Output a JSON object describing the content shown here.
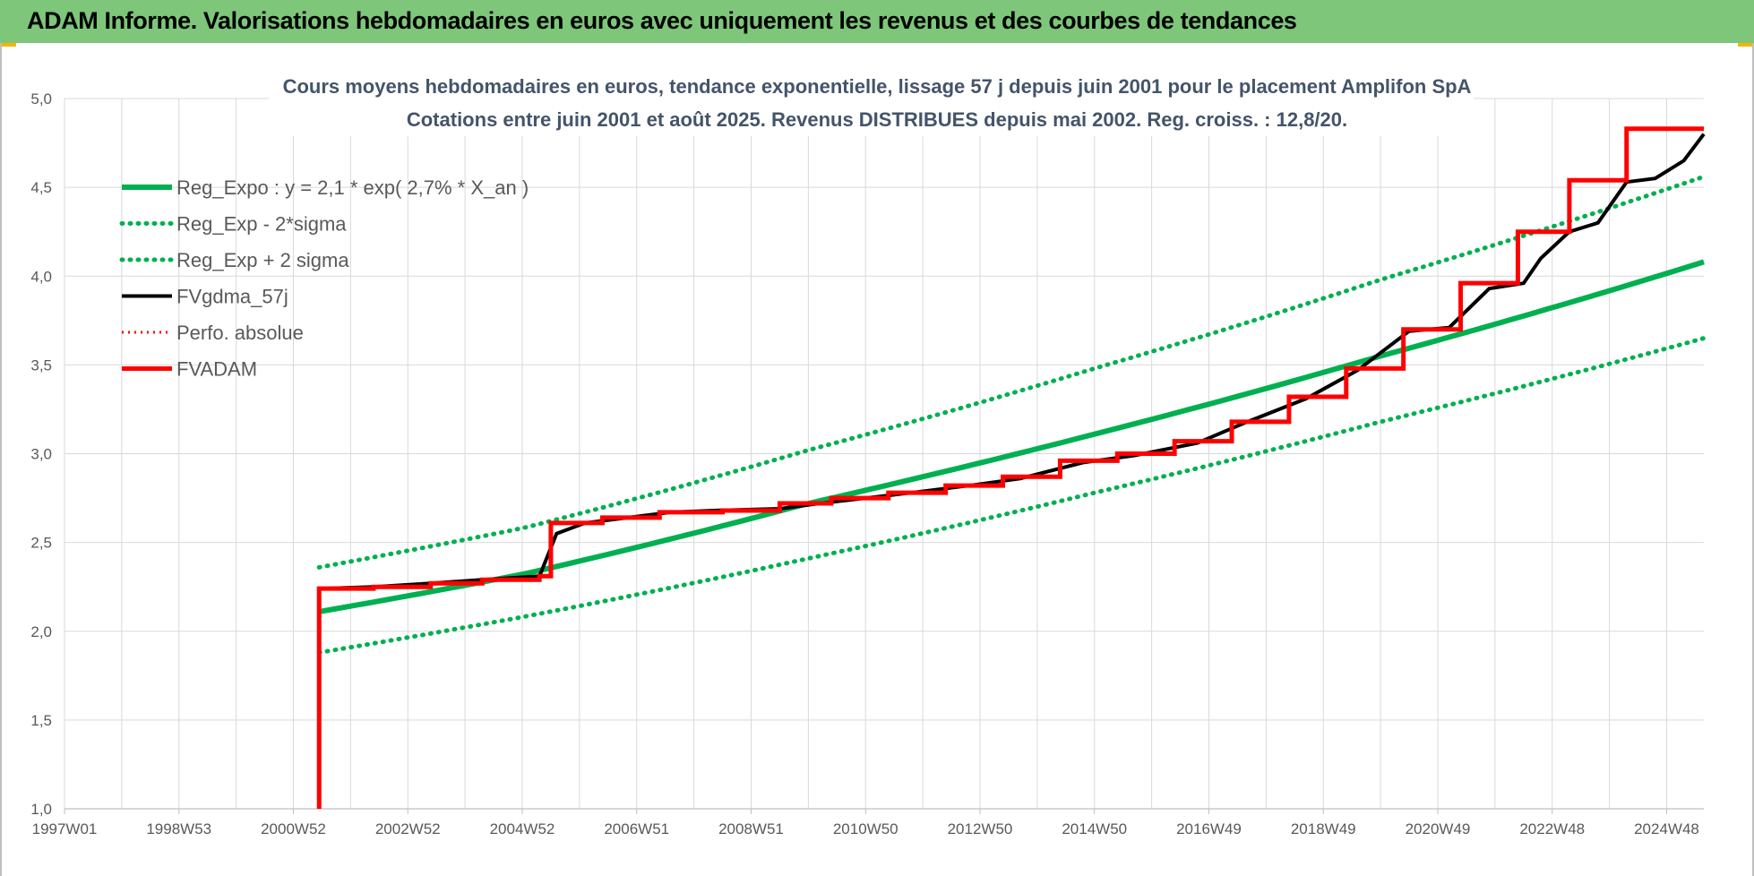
{
  "header": {
    "title": "ADAM Informe. Valorisations hebdomadaires en euros avec uniquement les revenus et des courbes de tendances"
  },
  "colors": {
    "header_bg": "#7dc67a",
    "green": "#00b050",
    "red": "#ff0000",
    "black": "#000000"
  },
  "chart_data": {
    "type": "line",
    "title": "Cours moyens hebdomadaires en euros, tendance exponentielle, lissage 57 j depuis juin 2001 pour le placement Amplifon SpA",
    "subtitle": "Cotations entre juin 2001 et août 2025. Revenus DISTRIBUES depuis mai 2002. Reg. croiss. : 12,8/20.",
    "xlabel": "",
    "ylabel": "",
    "ylim": [
      1.0,
      5.0
    ],
    "yticks": [
      "1,0",
      "1,5",
      "2,0",
      "2,5",
      "3,0",
      "3,5",
      "4,0",
      "4,5",
      "5,0"
    ],
    "xlim": [
      1997.0,
      2025.65
    ],
    "xticks": [
      "1997W01",
      "1998W53",
      "2000W52",
      "2002W52",
      "2004W52",
      "2006W51",
      "2008W51",
      "2010W50",
      "2012W50",
      "2014W50",
      "2016W49",
      "2018W49",
      "2020W49",
      "2022W48",
      "2024W48"
    ],
    "grid": true,
    "legend_position": "top-left",
    "series": [
      {
        "name": "Reg_Expo : y = 2,1 * exp( 2,7% *  X_an )",
        "style": "green-thick",
        "x": [
          2001.45,
          2005.0,
          2010.0,
          2015.0,
          2020.0,
          2025.65
        ],
        "y": [
          2.11,
          2.32,
          2.72,
          3.11,
          3.55,
          4.08
        ]
      },
      {
        "name": "Reg_Exp - 2*sigma",
        "style": "green-dotted",
        "x": [
          2001.45,
          2005.0,
          2010.0,
          2015.0,
          2020.0,
          2025.65
        ],
        "y": [
          1.88,
          2.08,
          2.41,
          2.78,
          3.18,
          3.65
        ]
      },
      {
        "name": "Reg_Exp + 2 sigma",
        "style": "green-dotted",
        "x": [
          2001.45,
          2005.0,
          2010.0,
          2015.0,
          2020.0,
          2025.65
        ],
        "y": [
          2.36,
          2.58,
          3.02,
          3.48,
          3.98,
          4.56
        ]
      },
      {
        "name": "FVgdma_57j",
        "style": "black",
        "x": [
          2001.45,
          2002.4,
          2003.4,
          2004.3,
          2005.3,
          2005.6,
          2006.1,
          2006.6,
          2007.1,
          2007.6,
          2008.4,
          2009.5,
          2010.2,
          2011.0,
          2011.8,
          2012.8,
          2013.7,
          2014.8,
          2015.7,
          2016.8,
          2017.6,
          2018.7,
          2019.6,
          2020.5,
          2021.2,
          2021.9,
          2022.5,
          2022.8,
          2023.3,
          2023.8,
          2024.3,
          2024.8,
          2025.3,
          2025.65
        ],
        "y": [
          2.24,
          2.25,
          2.27,
          2.29,
          2.31,
          2.55,
          2.61,
          2.63,
          2.65,
          2.67,
          2.68,
          2.69,
          2.72,
          2.75,
          2.78,
          2.82,
          2.86,
          2.95,
          2.99,
          3.06,
          3.17,
          3.31,
          3.47,
          3.69,
          3.71,
          3.93,
          3.96,
          4.1,
          4.25,
          4.3,
          4.53,
          4.55,
          4.65,
          4.8
        ]
      },
      {
        "name": "Perfo. absolue",
        "style": "red-dotted",
        "x": [],
        "y": []
      },
      {
        "name": "FVADAM",
        "style": "red-thick",
        "x": [
          2001.45,
          2001.45,
          2002.4,
          2003.4,
          2004.3,
          2005.3,
          2005.5,
          2006.4,
          2007.4,
          2008.5,
          2009.5,
          2010.4,
          2011.4,
          2012.4,
          2013.4,
          2014.4,
          2015.4,
          2016.4,
          2017.4,
          2018.4,
          2019.4,
          2020.4,
          2021.4,
          2022.4,
          2023.3,
          2024.3,
          2025.3,
          2025.65
        ],
        "y": [
          1.0,
          2.24,
          2.25,
          2.27,
          2.29,
          2.31,
          2.61,
          2.64,
          2.67,
          2.68,
          2.72,
          2.75,
          2.78,
          2.82,
          2.87,
          2.96,
          3.0,
          3.07,
          3.18,
          3.32,
          3.48,
          3.7,
          3.96,
          4.25,
          4.54,
          4.83,
          4.83,
          4.83
        ]
      }
    ]
  }
}
